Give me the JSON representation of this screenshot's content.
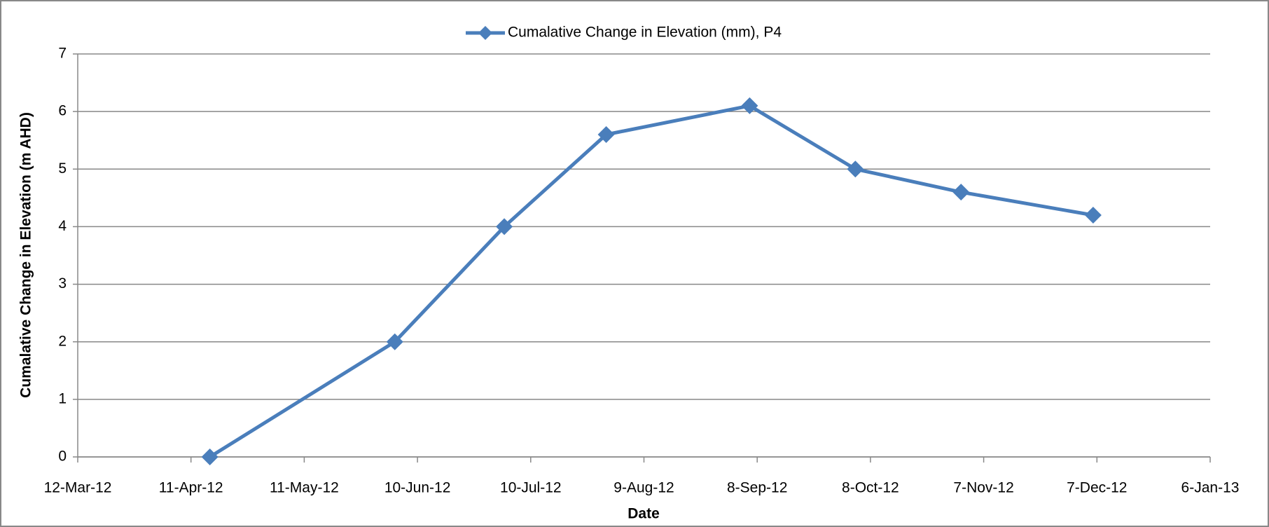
{
  "chart_data": {
    "type": "line",
    "x_label": "Date",
    "y_label": "Cumalative Change in Elevation (m AHD)",
    "x": [
      "2012-04-16",
      "2012-06-04",
      "2012-07-03",
      "2012-07-30",
      "2012-09-06",
      "2012-10-04",
      "2012-11-01",
      "2012-12-06"
    ],
    "series": [
      {
        "name": "Cumalative Change in Elevation (mm), P4",
        "color": "#4a7ebb",
        "values": [
          0,
          2,
          4,
          5.6,
          6.1,
          5.0,
          4.6,
          4.2
        ]
      }
    ],
    "xlim": [
      "2012-03-12",
      "2013-01-06"
    ],
    "xticks": [
      {
        "value": "2012-03-12",
        "label": "12-Mar-12"
      },
      {
        "value": "2012-04-11",
        "label": "11-Apr-12"
      },
      {
        "value": "2012-05-11",
        "label": "11-May-12"
      },
      {
        "value": "2012-06-10",
        "label": "10-Jun-12"
      },
      {
        "value": "2012-07-10",
        "label": "10-Jul-12"
      },
      {
        "value": "2012-08-09",
        "label": "9-Aug-12"
      },
      {
        "value": "2012-09-08",
        "label": "8-Sep-12"
      },
      {
        "value": "2012-10-08",
        "label": "8-Oct-12"
      },
      {
        "value": "2012-11-07",
        "label": "7-Nov-12"
      },
      {
        "value": "2012-12-07",
        "label": "7-Dec-12"
      },
      {
        "value": "2013-01-06",
        "label": "6-Jan-13"
      }
    ],
    "ylim": [
      0,
      7
    ],
    "yticks": [
      0,
      1,
      2,
      3,
      4,
      5,
      6,
      7
    ],
    "grid": true,
    "legend": "top"
  }
}
